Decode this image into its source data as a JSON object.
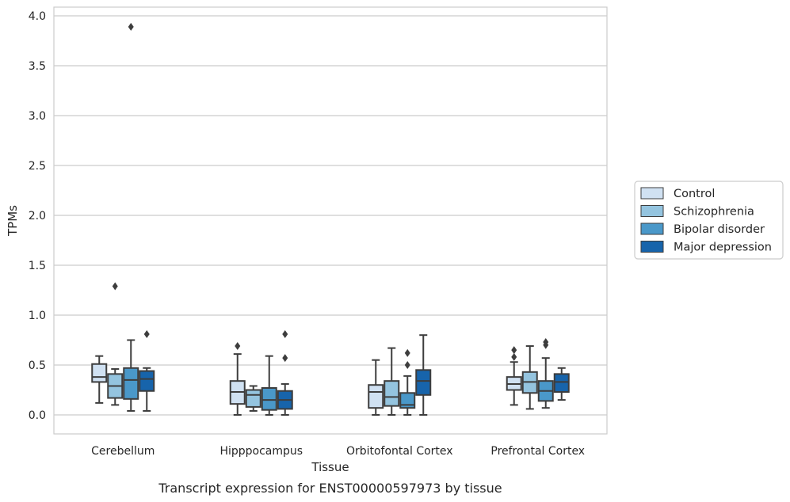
{
  "chart_data": {
    "type": "box",
    "caption": "Transcript expression for ENST00000597973 by tissue",
    "xlabel": "Tissue",
    "ylabel": "TPMs",
    "ylim": [
      -0.18,
      4.08
    ],
    "yticks": [
      "0.0",
      "0.5",
      "1.0",
      "1.5",
      "2.0",
      "2.5",
      "3.0",
      "3.5",
      "4.0"
    ],
    "grid": "horizontal",
    "legend_position": "right",
    "categories": [
      "Cerebellum",
      "Hipppocampus",
      "Orbitofontal Cortex",
      "Prefrontal Cortex"
    ],
    "series": [
      {
        "name": "Control",
        "color": "#d0e1f2",
        "boxes": [
          {
            "whislo": 0.12,
            "q1": 0.33,
            "med": 0.38,
            "q3": 0.51,
            "whishi": 0.59,
            "fliers": []
          },
          {
            "whislo": 0.0,
            "q1": 0.11,
            "med": 0.23,
            "q3": 0.34,
            "whishi": 0.61,
            "fliers": [
              0.69
            ]
          },
          {
            "whislo": 0.0,
            "q1": 0.07,
            "med": 0.23,
            "q3": 0.3,
            "whishi": 0.55,
            "fliers": []
          },
          {
            "whislo": 0.1,
            "q1": 0.25,
            "med": 0.31,
            "q3": 0.38,
            "whishi": 0.53,
            "fliers": [
              0.58,
              0.65
            ]
          }
        ]
      },
      {
        "name": "Schizophrenia",
        "color": "#94c4df",
        "boxes": [
          {
            "whislo": 0.1,
            "q1": 0.17,
            "med": 0.29,
            "q3": 0.41,
            "whishi": 0.46,
            "fliers": [
              1.29
            ]
          },
          {
            "whislo": 0.04,
            "q1": 0.08,
            "med": 0.2,
            "q3": 0.25,
            "whishi": 0.29,
            "fliers": []
          },
          {
            "whislo": 0.0,
            "q1": 0.09,
            "med": 0.18,
            "q3": 0.34,
            "whishi": 0.67,
            "fliers": []
          },
          {
            "whislo": 0.06,
            "q1": 0.22,
            "med": 0.33,
            "q3": 0.43,
            "whishi": 0.69,
            "fliers": []
          }
        ]
      },
      {
        "name": "Bipolar disorder",
        "color": "#4a98c9",
        "boxes": [
          {
            "whislo": 0.04,
            "q1": 0.16,
            "med": 0.35,
            "q3": 0.47,
            "whishi": 0.75,
            "fliers": [
              3.89
            ]
          },
          {
            "whislo": 0.0,
            "q1": 0.05,
            "med": 0.15,
            "q3": 0.27,
            "whishi": 0.59,
            "fliers": []
          },
          {
            "whislo": 0.0,
            "q1": 0.07,
            "med": 0.1,
            "q3": 0.22,
            "whishi": 0.39,
            "fliers": [
              0.5,
              0.62
            ]
          },
          {
            "whislo": 0.07,
            "q1": 0.14,
            "med": 0.24,
            "q3": 0.34,
            "whishi": 0.57,
            "fliers": [
              0.7,
              0.73
            ]
          }
        ]
      },
      {
        "name": "Major depression",
        "color": "#1764ab",
        "boxes": [
          {
            "whislo": 0.04,
            "q1": 0.24,
            "med": 0.36,
            "q3": 0.44,
            "whishi": 0.47,
            "fliers": [
              0.81
            ]
          },
          {
            "whislo": 0.0,
            "q1": 0.06,
            "med": 0.15,
            "q3": 0.24,
            "whishi": 0.31,
            "fliers": [
              0.57,
              0.81
            ]
          },
          {
            "whislo": 0.0,
            "q1": 0.2,
            "med": 0.34,
            "q3": 0.45,
            "whishi": 0.8,
            "fliers": []
          },
          {
            "whislo": 0.15,
            "q1": 0.23,
            "med": 0.33,
            "q3": 0.41,
            "whishi": 0.47,
            "fliers": []
          }
        ]
      }
    ]
  }
}
